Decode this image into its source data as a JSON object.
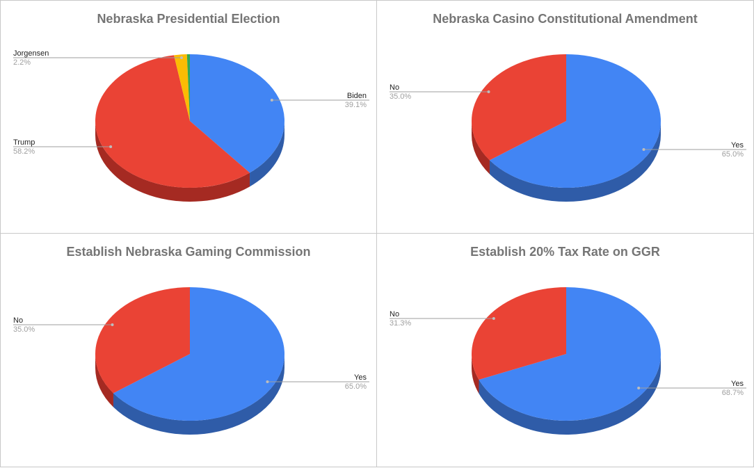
{
  "chart_data": [
    {
      "type": "pie",
      "title": "Nebraska Presidential Election",
      "slices": [
        {
          "label": "Biden",
          "value": 39.1,
          "display": "39.1%",
          "color": "#4285f4",
          "side": "#2f5ca8"
        },
        {
          "label": "Trump",
          "value": 58.2,
          "display": "58.2%",
          "color": "#ea4335",
          "side": "#a52a22"
        },
        {
          "label": "Jorgensen",
          "value": 2.2,
          "display": "2.2%",
          "color": "#fbbc04",
          "side": "#b88a03"
        },
        {
          "label": "",
          "value": 0.5,
          "display": "",
          "color": "#34a853",
          "side": "#237a3b"
        }
      ]
    },
    {
      "type": "pie",
      "title": "Nebraska Casino Constitutional Amendment",
      "slices": [
        {
          "label": "Yes",
          "value": 65.0,
          "display": "65.0%",
          "color": "#4285f4",
          "side": "#2f5ca8"
        },
        {
          "label": "No",
          "value": 35.0,
          "display": "35.0%",
          "color": "#ea4335",
          "side": "#a52a22"
        }
      ]
    },
    {
      "type": "pie",
      "title": "Establish Nebraska Gaming Commission",
      "slices": [
        {
          "label": "Yes",
          "value": 65.0,
          "display": "65.0%",
          "color": "#4285f4",
          "side": "#2f5ca8"
        },
        {
          "label": "No",
          "value": 35.0,
          "display": "35.0%",
          "color": "#ea4335",
          "side": "#a52a22"
        }
      ]
    },
    {
      "type": "pie",
      "title": "Establish 20% Tax Rate on GGR",
      "slices": [
        {
          "label": "Yes",
          "value": 68.7,
          "display": "68.7%",
          "color": "#4285f4",
          "side": "#2f5ca8"
        },
        {
          "label": "No",
          "value": 31.3,
          "display": "31.3%",
          "color": "#ea4335",
          "side": "#a52a22"
        }
      ]
    }
  ]
}
